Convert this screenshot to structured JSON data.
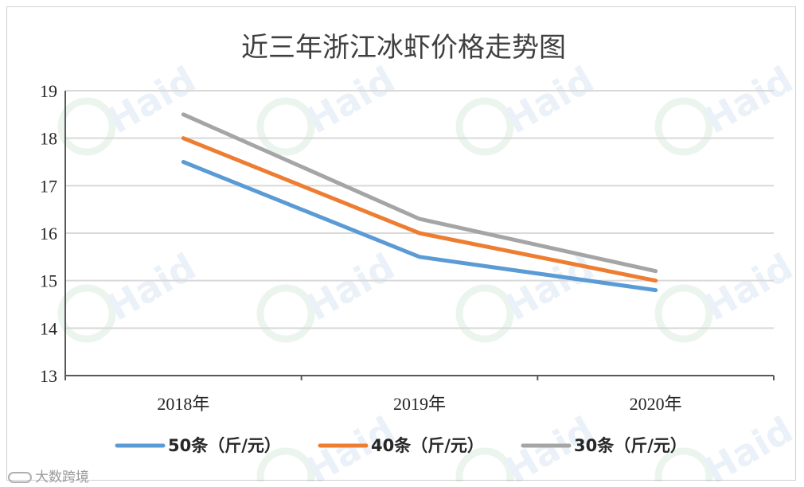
{
  "chart_data": {
    "type": "line",
    "title": "近三年浙江冰虾价格走势图",
    "categories": [
      "2018年",
      "2019年",
      "2020年"
    ],
    "ylim": [
      13,
      19
    ],
    "yticks": [
      "13",
      "14",
      "15",
      "16",
      "17",
      "18",
      "19"
    ],
    "grid": true,
    "legend_position": "bottom",
    "series": [
      {
        "name": "50条（斤/元）",
        "color": "#5B9BD5",
        "values": [
          17.5,
          15.5,
          14.8
        ]
      },
      {
        "name": "40条（斤/元）",
        "color": "#ED7D31",
        "values": [
          18.0,
          16.0,
          15.0
        ]
      },
      {
        "name": "30条（斤/元）",
        "color": "#A5A5A5",
        "values": [
          18.5,
          16.3,
          15.2
        ]
      }
    ]
  },
  "watermark": {
    "text": "Haid"
  },
  "source": {
    "text": "大数跨境"
  }
}
